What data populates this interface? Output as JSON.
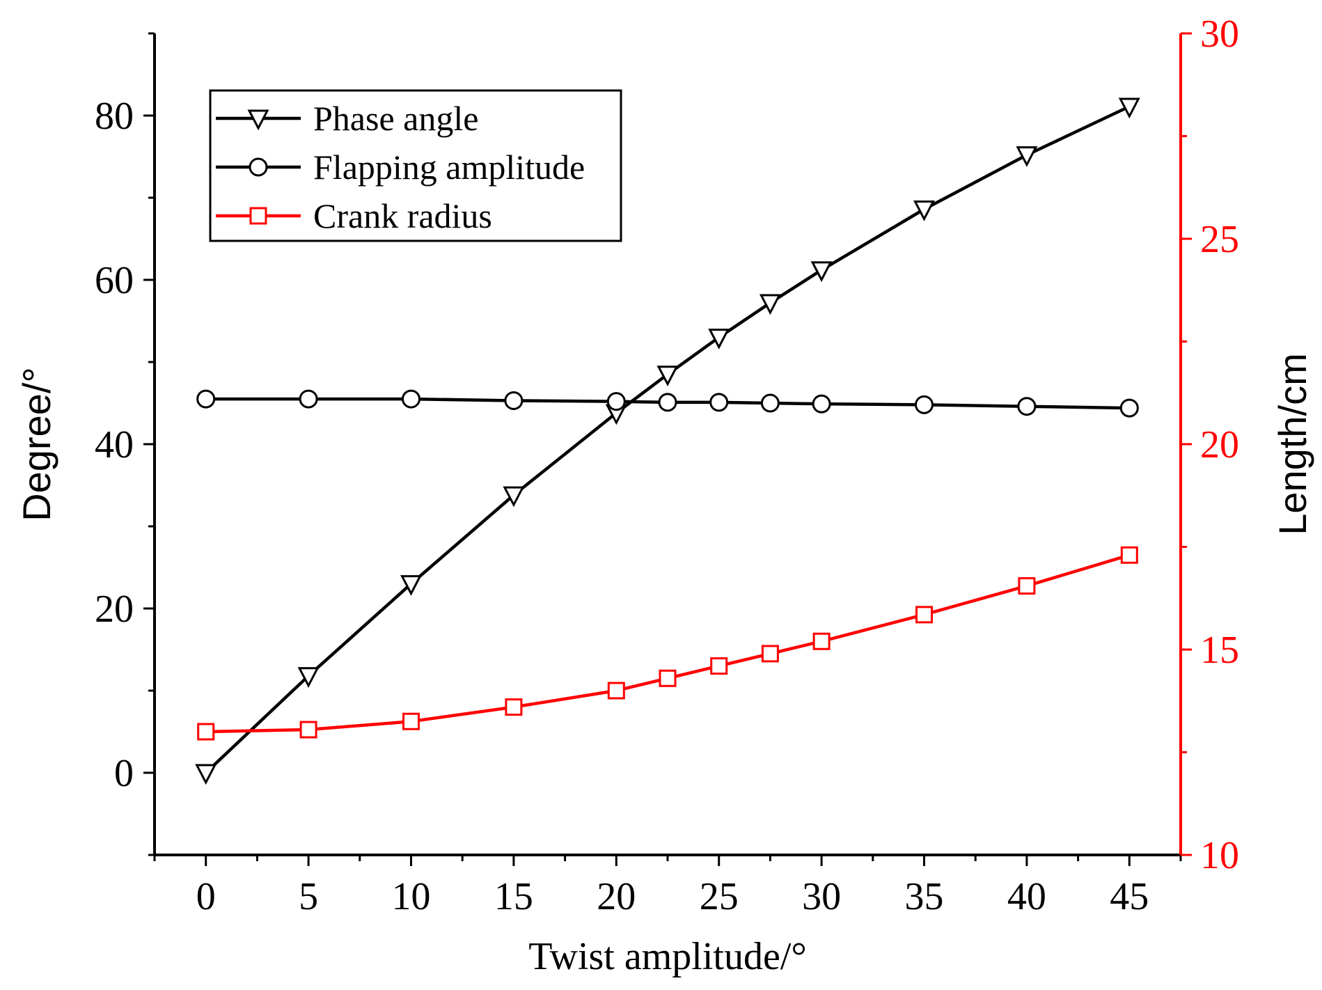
{
  "chart_data": {
    "type": "line",
    "xlabel": "Twist amplitude/°",
    "ylabel_left": "Degree/°",
    "ylabel_right": "Length/cm",
    "x": [
      0,
      5,
      10,
      15,
      20,
      22.5,
      25,
      27.5,
      30,
      35,
      40,
      45
    ],
    "xlim": [
      -2.5,
      47.5
    ],
    "xticks": [
      "0",
      "5",
      "10",
      "15",
      "20",
      "25",
      "30",
      "35",
      "40",
      "45"
    ],
    "ylim_left": [
      -10,
      90
    ],
    "yticks_left": [
      "0",
      "20",
      "40",
      "60",
      "80"
    ],
    "ylim_right": [
      10,
      30
    ],
    "yticks_right": [
      "10",
      "15",
      "20",
      "25",
      "30"
    ],
    "series": [
      {
        "name": "Phase angle",
        "axis": "left",
        "marker": "triangle-down",
        "color": "#000000",
        "values": [
          0,
          11.8,
          23,
          33.8,
          43.8,
          48.5,
          53,
          57.2,
          61.2,
          68.6,
          75.2,
          81.1
        ]
      },
      {
        "name": "Flapping amplitude",
        "axis": "left",
        "marker": "circle",
        "color": "#000000",
        "values": [
          45.5,
          45.5,
          45.5,
          45.3,
          45.2,
          45.1,
          45.1,
          45.0,
          44.9,
          44.8,
          44.6,
          44.4
        ]
      },
      {
        "name": "Crank radius",
        "axis": "right",
        "marker": "square",
        "color": "#ff0000",
        "values": [
          13.0,
          13.05,
          13.25,
          13.6,
          14.0,
          14.3,
          14.6,
          14.9,
          15.2,
          15.85,
          16.55,
          17.3
        ]
      }
    ],
    "legend_position": "top-left"
  }
}
